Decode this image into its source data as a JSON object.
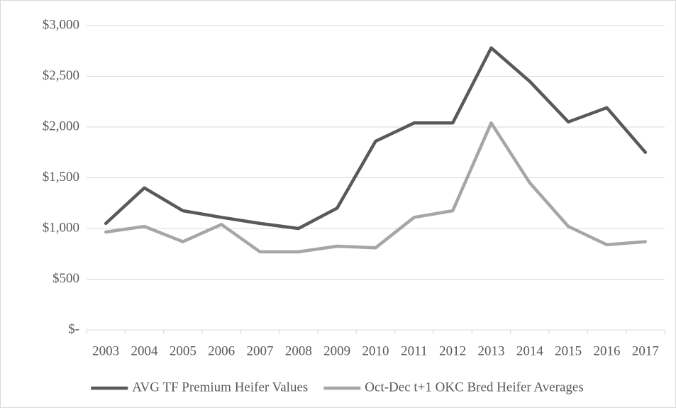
{
  "chart_data": {
    "type": "line",
    "categories": [
      "2003",
      "2004",
      "2005",
      "2006",
      "2007",
      "2008",
      "2009",
      "2010",
      "2011",
      "2012",
      "2013",
      "2014",
      "2015",
      "2016",
      "2017"
    ],
    "series": [
      {
        "name": "AVG TF Premium Heifer Values",
        "color": "#595959",
        "values": [
          1050,
          1400,
          1175,
          1110,
          1050,
          1000,
          1200,
          1860,
          2040,
          2040,
          2780,
          2450,
          2050,
          2190,
          1750
        ]
      },
      {
        "name": "Oct-Dec t+1 OKC Bred Heifer Averages",
        "color": "#a6a6a6",
        "values": [
          965,
          1020,
          870,
          1040,
          770,
          770,
          825,
          810,
          1110,
          1175,
          2040,
          1450,
          1020,
          840,
          870
        ]
      }
    ],
    "ylim": [
      0,
      3000
    ],
    "yticks": [
      {
        "value": 0,
        "label": "$-"
      },
      {
        "value": 500,
        "label": "$500"
      },
      {
        "value": 1000,
        "label": "$1,000"
      },
      {
        "value": 1500,
        "label": "$1,500"
      },
      {
        "value": 2000,
        "label": "$2,000"
      },
      {
        "value": 2500,
        "label": "$2,500"
      },
      {
        "value": 3000,
        "label": "$3,000"
      }
    ],
    "grid": true,
    "legend": "bottom"
  }
}
